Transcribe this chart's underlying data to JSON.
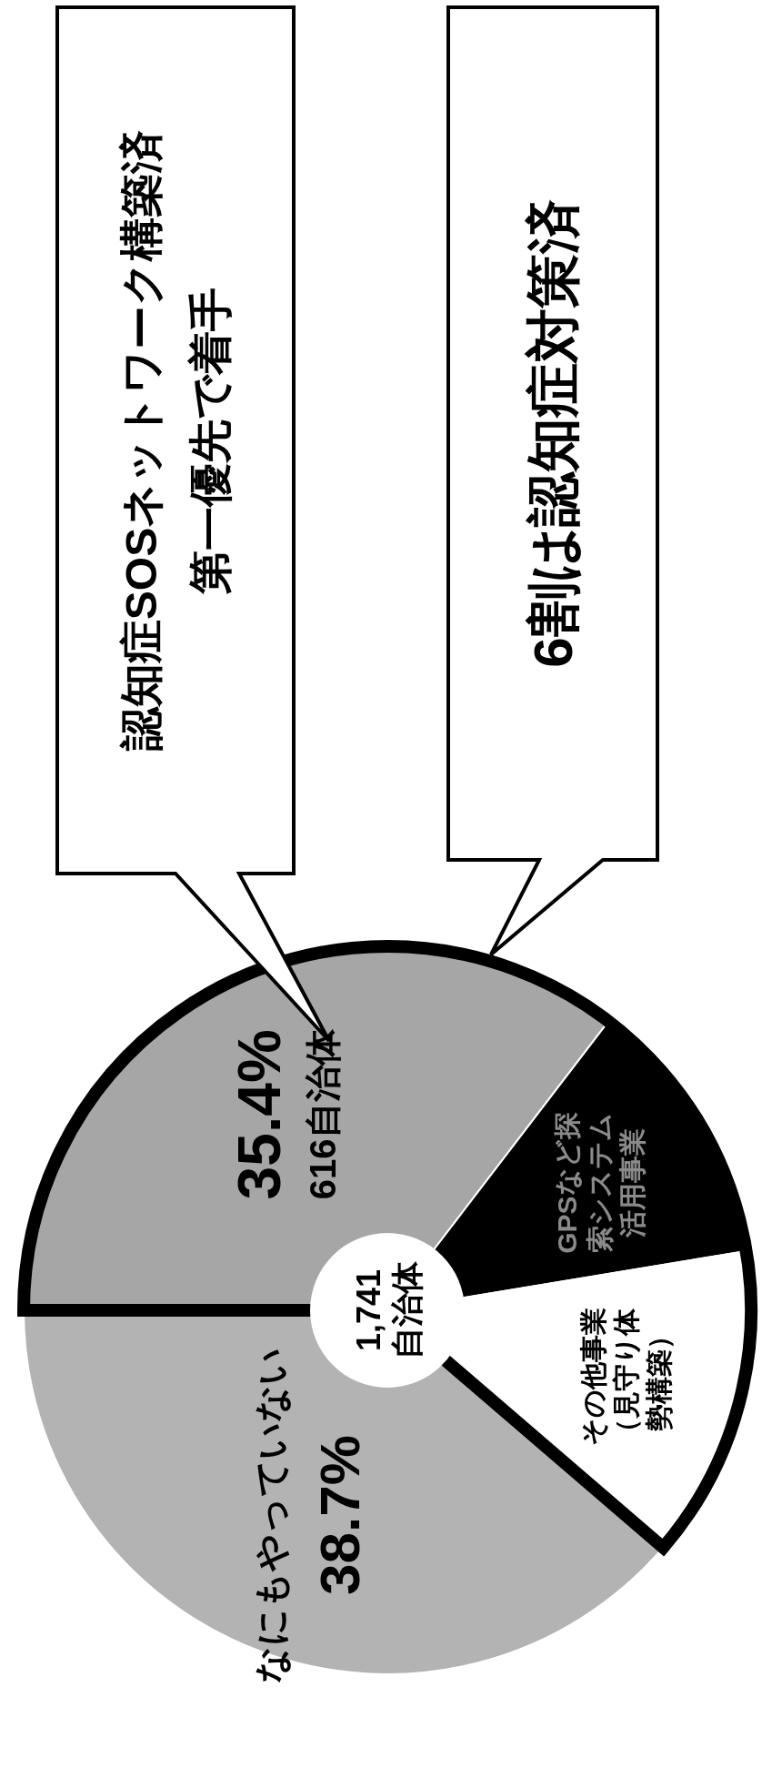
{
  "chart_data": {
    "type": "donut",
    "categories": [
      null,
      "GPSなど探索システム活用事業",
      "その他事業（見守り体勢構築）",
      "なにもやっていない"
    ],
    "values": [
      35.4,
      12.0,
      13.9,
      38.7
    ],
    "colors": [
      "#a6a6a6",
      "#000000",
      "#ffffff",
      "#b3b3b3"
    ],
    "value_labels": [
      "35.4%\n616自治体",
      null,
      null,
      "38.7%"
    ],
    "annotations": [
      "1,741\n自治体",
      "認知症SOSネットワーク構築済第一優先で着手",
      "6割は認知症対策済"
    ]
  }
}
